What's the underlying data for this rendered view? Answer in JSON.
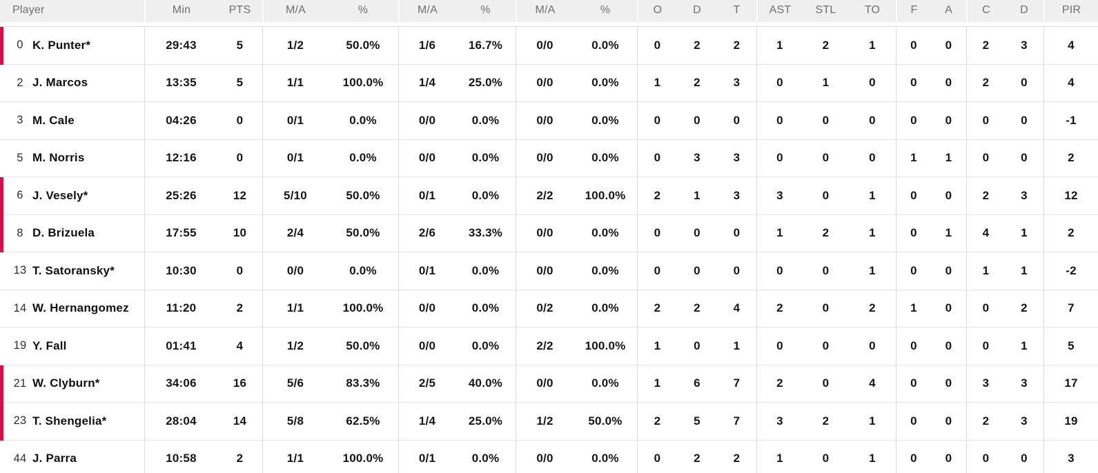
{
  "colors": {
    "accent": "#e10a47",
    "header_bg": "#efeff0",
    "header_text": "#6d6f71",
    "row_border": "#e3e4e5",
    "group_border": "#d9dadb",
    "body_text": "#161616"
  },
  "header": [
    "Player",
    "Min",
    "PTS",
    "M/A",
    "%",
    "M/A",
    "%",
    "M/A",
    "%",
    "O",
    "D",
    "T",
    "AST",
    "STL",
    "TO",
    "F",
    "A",
    "C",
    "D",
    "PIR"
  ],
  "players": [
    {
      "number": "0",
      "name": "K. Punter*",
      "on_court": true,
      "stats": [
        "29:43",
        "5",
        "1/2",
        "50.0%",
        "1/6",
        "16.7%",
        "0/0",
        "0.0%",
        "0",
        "2",
        "2",
        "1",
        "2",
        "1",
        "0",
        "0",
        "2",
        "3",
        "4"
      ]
    },
    {
      "number": "2",
      "name": "J. Marcos",
      "on_court": false,
      "stats": [
        "13:35",
        "5",
        "1/1",
        "100.0%",
        "1/4",
        "25.0%",
        "0/0",
        "0.0%",
        "1",
        "2",
        "3",
        "0",
        "1",
        "0",
        "0",
        "0",
        "2",
        "0",
        "4"
      ]
    },
    {
      "number": "3",
      "name": "M. Cale",
      "on_court": false,
      "stats": [
        "04:26",
        "0",
        "0/1",
        "0.0%",
        "0/0",
        "0.0%",
        "0/0",
        "0.0%",
        "0",
        "0",
        "0",
        "0",
        "0",
        "0",
        "0",
        "0",
        "0",
        "0",
        "-1"
      ]
    },
    {
      "number": "5",
      "name": "M. Norris",
      "on_court": false,
      "stats": [
        "12:16",
        "0",
        "0/1",
        "0.0%",
        "0/0",
        "0.0%",
        "0/0",
        "0.0%",
        "0",
        "3",
        "3",
        "0",
        "0",
        "0",
        "1",
        "1",
        "0",
        "0",
        "2"
      ]
    },
    {
      "number": "6",
      "name": "J. Vesely*",
      "on_court": true,
      "stats": [
        "25:26",
        "12",
        "5/10",
        "50.0%",
        "0/1",
        "0.0%",
        "2/2",
        "100.0%",
        "2",
        "1",
        "3",
        "3",
        "0",
        "1",
        "0",
        "0",
        "2",
        "3",
        "12"
      ]
    },
    {
      "number": "8",
      "name": "D. Brizuela",
      "on_court": true,
      "stats": [
        "17:55",
        "10",
        "2/4",
        "50.0%",
        "2/6",
        "33.3%",
        "0/0",
        "0.0%",
        "0",
        "0",
        "0",
        "1",
        "2",
        "1",
        "0",
        "1",
        "4",
        "1",
        "2"
      ]
    },
    {
      "number": "13",
      "name": "T. Satoransky*",
      "on_court": false,
      "stats": [
        "10:30",
        "0",
        "0/0",
        "0.0%",
        "0/1",
        "0.0%",
        "0/0",
        "0.0%",
        "0",
        "0",
        "0",
        "0",
        "0",
        "1",
        "0",
        "0",
        "1",
        "1",
        "-2"
      ]
    },
    {
      "number": "14",
      "name": "W. Hernangomez",
      "on_court": false,
      "stats": [
        "11:20",
        "2",
        "1/1",
        "100.0%",
        "0/0",
        "0.0%",
        "0/2",
        "0.0%",
        "2",
        "2",
        "4",
        "2",
        "0",
        "2",
        "1",
        "0",
        "0",
        "2",
        "7"
      ]
    },
    {
      "number": "19",
      "name": "Y. Fall",
      "on_court": false,
      "stats": [
        "01:41",
        "4",
        "1/2",
        "50.0%",
        "0/0",
        "0.0%",
        "2/2",
        "100.0%",
        "1",
        "0",
        "1",
        "0",
        "0",
        "0",
        "0",
        "0",
        "0",
        "1",
        "5"
      ]
    },
    {
      "number": "21",
      "name": "W. Clyburn*",
      "on_court": true,
      "stats": [
        "34:06",
        "16",
        "5/6",
        "83.3%",
        "2/5",
        "40.0%",
        "0/0",
        "0.0%",
        "1",
        "6",
        "7",
        "2",
        "0",
        "4",
        "0",
        "0",
        "3",
        "3",
        "17"
      ]
    },
    {
      "number": "23",
      "name": "T. Shengelia*",
      "on_court": true,
      "stats": [
        "28:04",
        "14",
        "5/8",
        "62.5%",
        "1/4",
        "25.0%",
        "1/2",
        "50.0%",
        "2",
        "5",
        "7",
        "3",
        "2",
        "1",
        "0",
        "0",
        "2",
        "3",
        "19"
      ]
    },
    {
      "number": "44",
      "name": "J. Parra",
      "on_court": false,
      "stats": [
        "10:58",
        "2",
        "1/1",
        "100.0%",
        "0/1",
        "0.0%",
        "0/0",
        "0.0%",
        "0",
        "2",
        "2",
        "1",
        "0",
        "1",
        "0",
        "0",
        "0",
        "0",
        "3"
      ]
    }
  ]
}
